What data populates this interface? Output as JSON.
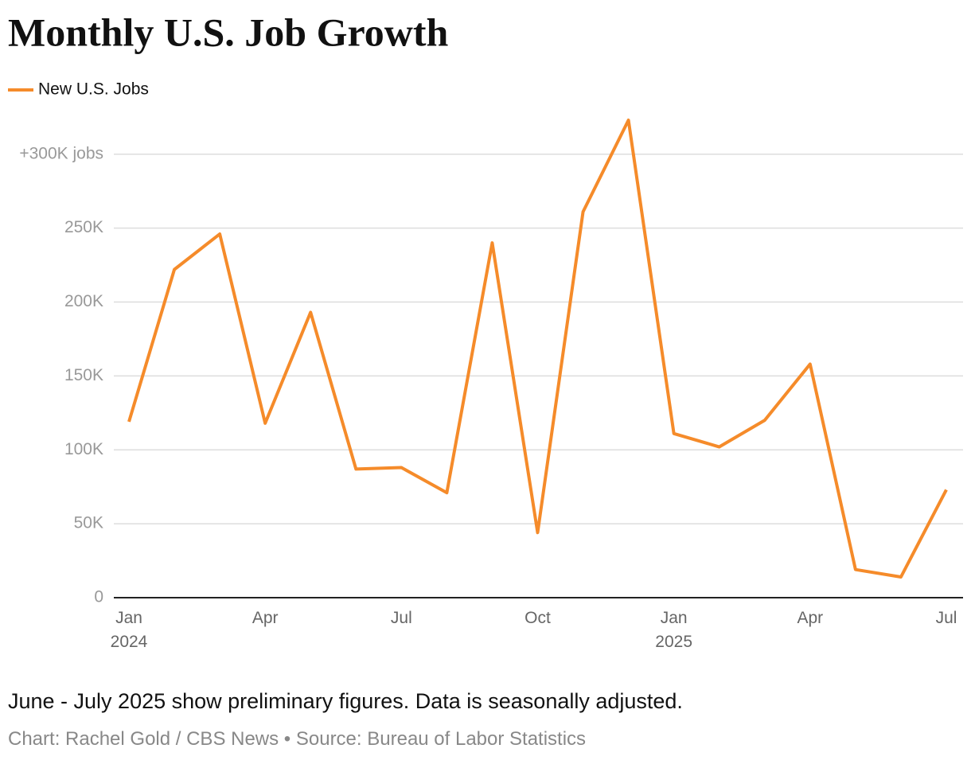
{
  "chart_data": {
    "type": "line",
    "title": "Monthly U.S. Job Growth",
    "categories": [
      "Jan\n2024",
      null,
      null,
      "Apr",
      null,
      null,
      "Jul",
      null,
      null,
      "Oct",
      null,
      null,
      "Jan\n2025",
      null,
      null,
      "Apr",
      null,
      null,
      "Jul"
    ],
    "series": [
      {
        "name": "New U.S. Jobs",
        "color": "#f58b2a",
        "values": [
          119000,
          222000,
          246000,
          118000,
          193000,
          87000,
          88000,
          71000,
          240000,
          44000,
          261000,
          323000,
          111000,
          102000,
          120000,
          158000,
          19000,
          14000,
          73000
        ]
      }
    ],
    "ylim": [
      0,
      330000
    ],
    "yticks": [
      0,
      {
        "value": 50000,
        "label": "50K"
      },
      {
        "value": 100000,
        "label": "100K"
      },
      {
        "value": 150000,
        "label": "150K"
      },
      {
        "value": 200000,
        "label": "200K"
      },
      {
        "value": 250000,
        "label": "250K"
      },
      {
        "value": 300000,
        "label": "+300K jobs"
      }
    ],
    "grid": true,
    "legend": "top-left",
    "note": "June - July 2025 show preliminary figures. Data is seasonally adjusted.",
    "source": "Chart: Rachel Gold / CBS News • Source: Bureau of Labor Statistics"
  }
}
